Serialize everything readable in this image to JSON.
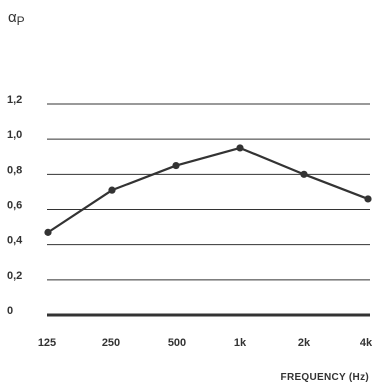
{
  "chart_data": {
    "type": "line",
    "ylabel": "αP",
    "xlabel": "FREQUENCY (Hz)",
    "categories": [
      "125",
      "250",
      "500",
      "1k",
      "2k",
      "4k"
    ],
    "y_ticks": [
      "0",
      "0,2",
      "0,4",
      "0,6",
      "0,8",
      "1,0",
      "1,2"
    ],
    "y_tick_values": [
      0,
      0.2,
      0.4,
      0.6,
      0.8,
      1.0,
      1.2
    ],
    "ylim": [
      0,
      1.2
    ],
    "grid": true,
    "series": [
      {
        "values": [
          0.47,
          0.71,
          0.85,
          0.95,
          0.8,
          0.66
        ]
      }
    ],
    "colors": {
      "line": "#333333",
      "grid": "#333333",
      "text": "#333333"
    }
  }
}
